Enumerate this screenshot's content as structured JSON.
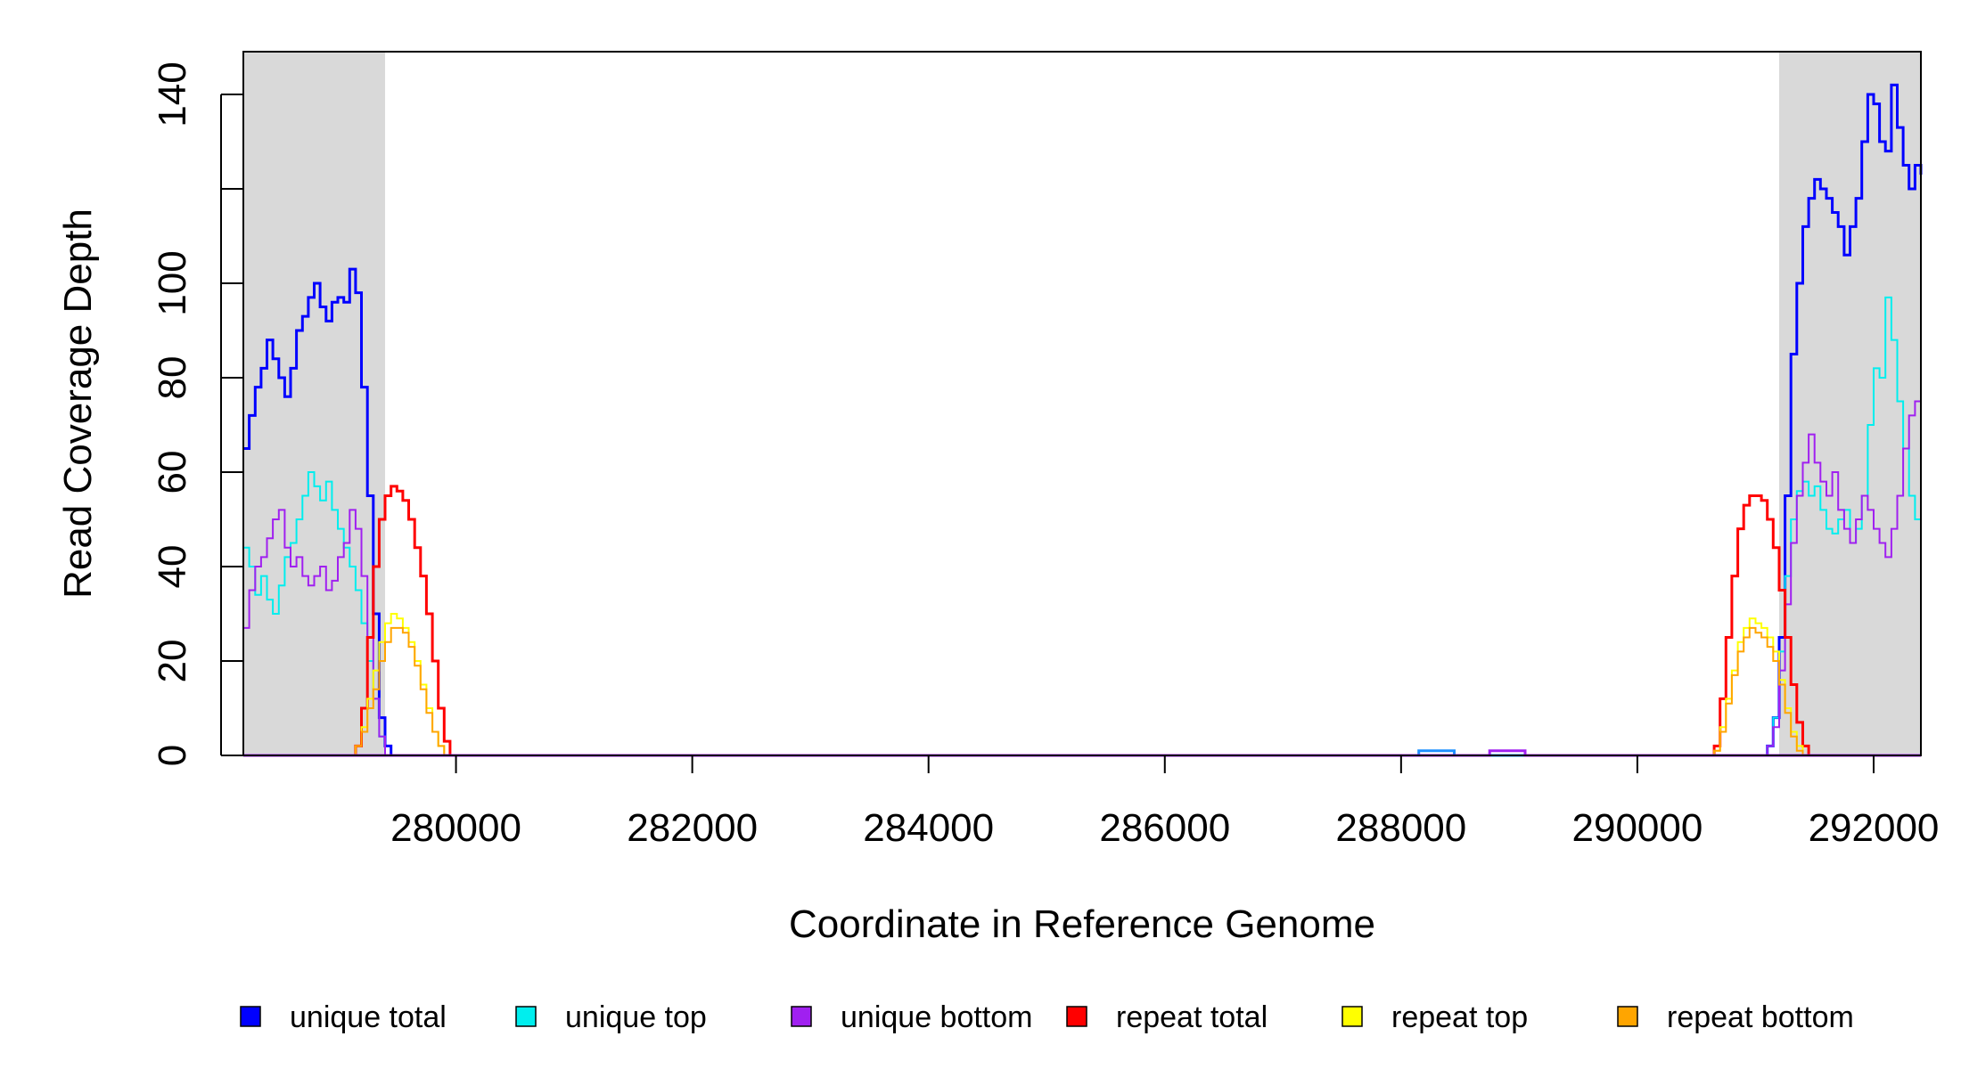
{
  "chart_data": {
    "type": "line",
    "title": "",
    "xlabel": "Coordinate in Reference Genome",
    "ylabel": "Read Coverage Depth",
    "xlim": [
      278200,
      292400
    ],
    "ylim": [
      0,
      150
    ],
    "x_ticks": [
      280000,
      282000,
      284000,
      286000,
      288000,
      290000,
      292000
    ],
    "y_ticks": [
      0,
      20,
      40,
      60,
      80,
      100,
      120,
      140
    ],
    "x_tick_labels": [
      "280000",
      "282000",
      "284000",
      "286000",
      "288000",
      "290000",
      "292000"
    ],
    "y_tick_labels": [
      "0",
      "20",
      "40",
      "60",
      "80",
      "100",
      "",
      "140"
    ],
    "shaded_regions": [
      {
        "x_start": 278200,
        "x_end": 279400,
        "color": "#d9d9d9"
      },
      {
        "x_start": 291200,
        "x_end": 292400,
        "color": "#d9d9d9"
      }
    ],
    "legend_placement": "bottom",
    "series": [
      {
        "name": "unique total",
        "color": "#0000ff",
        "stroke": 3,
        "x": [
          278200,
          278250,
          278300,
          278350,
          278400,
          278450,
          278500,
          278550,
          278600,
          278650,
          278700,
          278750,
          278800,
          278850,
          278900,
          278950,
          279000,
          279050,
          279100,
          279150,
          279200,
          279250,
          279300,
          279350,
          279400,
          279450,
          279500,
          279550,
          280000,
          288000,
          290000,
          291000,
          291100,
          291150,
          291200,
          291250,
          291300,
          291350,
          291400,
          291450,
          291500,
          291550,
          291600,
          291650,
          291700,
          291750,
          291800,
          291850,
          291900,
          291950,
          292000,
          292050,
          292100,
          292150,
          292200,
          292250,
          292300,
          292350,
          292400
        ],
        "y": [
          65,
          72,
          78,
          82,
          88,
          84,
          80,
          76,
          82,
          90,
          93,
          97,
          100,
          95,
          92,
          96,
          97,
          96,
          103,
          98,
          78,
          55,
          30,
          8,
          2,
          0,
          0,
          0,
          0,
          0,
          0,
          0,
          2,
          8,
          25,
          55,
          85,
          100,
          112,
          118,
          122,
          120,
          118,
          115,
          112,
          106,
          112,
          118,
          130,
          140,
          138,
          130,
          128,
          142,
          133,
          125,
          120,
          125,
          123
        ]
      },
      {
        "name": "unique top",
        "color": "#00eeee",
        "stroke": 2,
        "x": [
          278200,
          278250,
          278300,
          278350,
          278400,
          278450,
          278500,
          278550,
          278600,
          278650,
          278700,
          278750,
          278800,
          278850,
          278900,
          278950,
          279000,
          279050,
          279100,
          279150,
          279200,
          279250,
          279300,
          279350,
          279400,
          279450,
          279500,
          279550,
          280000,
          288000,
          290000,
          291000,
          291100,
          291150,
          291200,
          291250,
          291300,
          291350,
          291400,
          291450,
          291500,
          291550,
          291600,
          291650,
          291700,
          291750,
          291800,
          291850,
          291900,
          291950,
          292000,
          292050,
          292100,
          292150,
          292200,
          292250,
          292300,
          292350,
          292400
        ],
        "y": [
          44,
          40,
          34,
          38,
          33,
          30,
          36,
          42,
          45,
          50,
          55,
          60,
          57,
          54,
          58,
          52,
          48,
          44,
          40,
          35,
          28,
          20,
          12,
          4,
          0,
          0,
          0,
          0,
          0,
          0,
          0,
          0,
          2,
          8,
          22,
          38,
          50,
          56,
          58,
          55,
          57,
          52,
          48,
          47,
          50,
          52,
          45,
          48,
          55,
          70,
          82,
          80,
          97,
          88,
          75,
          65,
          55,
          50,
          49
        ]
      },
      {
        "name": "unique bottom",
        "color": "#a020f0",
        "stroke": 2,
        "x": [
          278200,
          278250,
          278300,
          278350,
          278400,
          278450,
          278500,
          278550,
          278600,
          278650,
          278700,
          278750,
          278800,
          278850,
          278900,
          278950,
          279000,
          279050,
          279100,
          279150,
          279200,
          279250,
          279300,
          279350,
          279400,
          279450,
          279500,
          279550,
          280000,
          288000,
          290000,
          291000,
          291100,
          291150,
          291200,
          291250,
          291300,
          291350,
          291400,
          291450,
          291500,
          291550,
          291600,
          291650,
          291700,
          291750,
          291800,
          291850,
          291900,
          291950,
          292000,
          292050,
          292100,
          292150,
          292200,
          292250,
          292300,
          292350,
          292400
        ],
        "y": [
          27,
          35,
          40,
          42,
          46,
          50,
          52,
          44,
          40,
          42,
          38,
          36,
          38,
          40,
          35,
          37,
          42,
          45,
          52,
          48,
          38,
          25,
          12,
          4,
          0,
          0,
          0,
          0,
          0,
          0,
          0,
          0,
          2,
          6,
          18,
          32,
          45,
          55,
          62,
          68,
          62,
          58,
          55,
          60,
          52,
          48,
          45,
          50,
          55,
          52,
          48,
          45,
          42,
          48,
          55,
          65,
          72,
          75,
          73
        ]
      },
      {
        "name": "repeat total",
        "color": "#ff0000",
        "stroke": 3,
        "x": [
          278200,
          279000,
          279150,
          279200,
          279250,
          279300,
          279350,
          279400,
          279450,
          279500,
          279550,
          279600,
          279650,
          279700,
          279750,
          279800,
          279850,
          279900,
          279950,
          280000,
          290500,
          290650,
          290700,
          290750,
          290800,
          290850,
          290900,
          290950,
          291000,
          291050,
          291100,
          291150,
          291200,
          291250,
          291300,
          291350,
          291400,
          291450,
          291500,
          292400
        ],
        "y": [
          0,
          0,
          2,
          10,
          25,
          40,
          50,
          55,
          57,
          56,
          54,
          50,
          44,
          38,
          30,
          20,
          10,
          3,
          0,
          0,
          0,
          2,
          12,
          25,
          38,
          48,
          53,
          55,
          55,
          54,
          50,
          44,
          35,
          25,
          15,
          7,
          2,
          0,
          0,
          0
        ]
      },
      {
        "name": "repeat top",
        "color": "#ffff00",
        "stroke": 2,
        "x": [
          278200,
          279000,
          279150,
          279200,
          279250,
          279300,
          279350,
          279400,
          279450,
          279500,
          279550,
          279600,
          279650,
          279700,
          279750,
          279800,
          279850,
          279900,
          279950,
          280000,
          290500,
          290650,
          290700,
          290750,
          290800,
          290850,
          290900,
          290950,
          291000,
          291050,
          291100,
          291150,
          291200,
          291250,
          291300,
          291350,
          291400,
          291450,
          291500,
          292400
        ],
        "y": [
          0,
          0,
          2,
          6,
          12,
          18,
          24,
          28,
          30,
          29,
          27,
          24,
          20,
          15,
          10,
          5,
          2,
          0,
          0,
          0,
          0,
          1,
          6,
          12,
          18,
          24,
          27,
          29,
          28,
          27,
          25,
          22,
          16,
          10,
          5,
          2,
          0,
          0,
          0,
          0
        ]
      },
      {
        "name": "repeat bottom",
        "color": "#ffa500",
        "stroke": 2,
        "x": [
          278200,
          279000,
          279150,
          279200,
          279250,
          279300,
          279350,
          279400,
          279450,
          279500,
          279550,
          279600,
          279650,
          279700,
          279750,
          279800,
          279850,
          279900,
          279950,
          280000,
          290500,
          290650,
          290700,
          290750,
          290800,
          290850,
          290900,
          290950,
          291000,
          291050,
          291100,
          291150,
          291200,
          291250,
          291300,
          291350,
          291400,
          291450,
          291500,
          292400
        ],
        "y": [
          0,
          0,
          2,
          5,
          10,
          14,
          20,
          24,
          27,
          27,
          26,
          23,
          19,
          14,
          9,
          5,
          2,
          0,
          0,
          0,
          0,
          1,
          5,
          11,
          17,
          22,
          25,
          27,
          26,
          25,
          23,
          20,
          15,
          9,
          4,
          1,
          0,
          0,
          0,
          0
        ]
      },
      {
        "name": "",
        "color": "#1e90ff",
        "stroke": 3,
        "x": [
          278200,
          288100,
          288150,
          288400,
          288450,
          292400
        ],
        "y": [
          0,
          0,
          1,
          1,
          0,
          0
        ]
      },
      {
        "name": "",
        "color": "#a020f0",
        "stroke": 3,
        "x": [
          278200,
          288700,
          288750,
          289000,
          289050,
          292400
        ],
        "y": [
          0,
          0,
          1,
          1,
          0,
          0
        ]
      }
    ]
  }
}
